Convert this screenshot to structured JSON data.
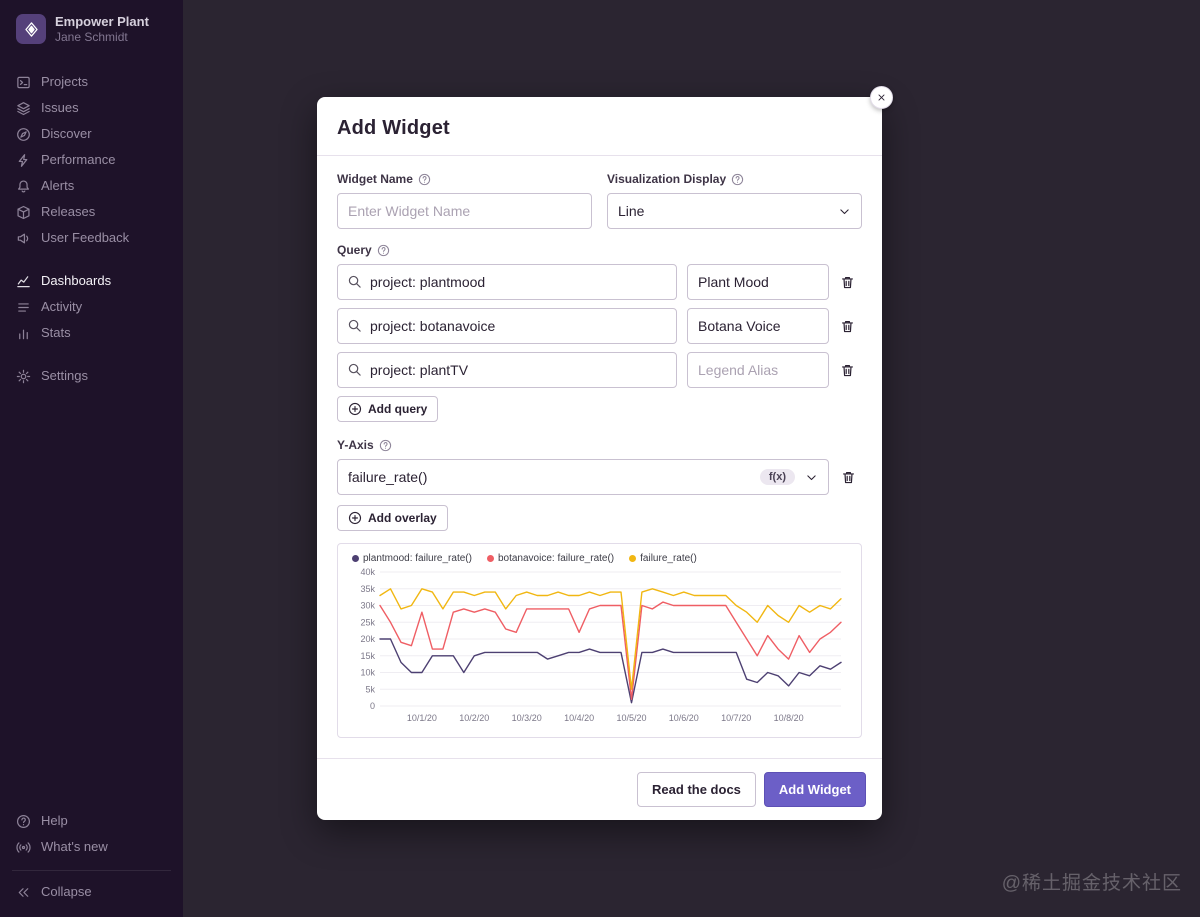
{
  "sidebar": {
    "org_name": "Empower Plant",
    "user_name": "Jane Schmidt",
    "primary_items": [
      {
        "label": "Projects",
        "icon": "projects",
        "name": "projects"
      },
      {
        "label": "Issues",
        "icon": "issues",
        "name": "issues"
      },
      {
        "label": "Discover",
        "icon": "discover",
        "name": "discover"
      },
      {
        "label": "Performance",
        "icon": "performance",
        "name": "performance"
      },
      {
        "label": "Alerts",
        "icon": "alerts",
        "name": "alerts"
      },
      {
        "label": "Releases",
        "icon": "releases",
        "name": "releases"
      },
      {
        "label": "User Feedback",
        "icon": "user-feedback",
        "name": "user-feedback"
      }
    ],
    "secondary_items": [
      {
        "label": "Dashboards",
        "icon": "dashboards",
        "name": "dashboards",
        "active": true
      },
      {
        "label": "Activity",
        "icon": "activity",
        "name": "activity"
      },
      {
        "label": "Stats",
        "icon": "stats",
        "name": "stats"
      }
    ],
    "settings_items": [
      {
        "label": "Settings",
        "icon": "settings",
        "name": "settings"
      }
    ],
    "footer_items": [
      {
        "label": "Help",
        "icon": "help",
        "name": "help"
      },
      {
        "label": "What's new",
        "icon": "whats-new",
        "name": "whats-new"
      }
    ],
    "collapse_items": [
      {
        "label": "Collapse",
        "icon": "collapse",
        "name": "collapse"
      }
    ]
  },
  "modal": {
    "title": "Add Widget",
    "widget_name": {
      "label": "Widget Name",
      "placeholder": "Enter Widget Name"
    },
    "visualization": {
      "label": "Visualization Display",
      "value": "Line"
    },
    "query": {
      "label": "Query",
      "rows": [
        {
          "query": "project: plantmood",
          "alias": "Plant Mood",
          "alias_placeholder": "Legend Alias"
        },
        {
          "query": "project: botanavoice",
          "alias": "Botana Voice",
          "alias_placeholder": "Legend Alias"
        },
        {
          "query": "project: plantTV",
          "alias": "",
          "alias_placeholder": "Legend Alias"
        }
      ],
      "add_button": "Add query"
    },
    "y_axis": {
      "label": "Y-Axis",
      "value": "failure_rate()",
      "badge": "f(x)",
      "add_button": "Add overlay"
    },
    "footer": {
      "docs_button": "Read the docs",
      "submit_button": "Add Widget"
    }
  },
  "chart_data": {
    "type": "line",
    "y_max": 40,
    "y_step": 5,
    "y_unit": "k",
    "x_labels": [
      "10/1/20",
      "10/2/20",
      "10/3/20",
      "10/4/20",
      "10/5/20",
      "10/6/20",
      "10/7/20",
      "10/8/20"
    ],
    "x_label_indices": [
      4,
      9,
      14,
      19,
      24,
      29,
      34,
      39
    ],
    "legend_position": "top",
    "grid": true,
    "series": [
      {
        "name": "plantmood: failure_rate()",
        "color": "#4d4072",
        "values": [
          20,
          20,
          13,
          10,
          10,
          15,
          15,
          15,
          10,
          15,
          16,
          16,
          16,
          16,
          16,
          16,
          14,
          15,
          16,
          16,
          17,
          16,
          16,
          16,
          1,
          16,
          16,
          17,
          16,
          16,
          16,
          16,
          16,
          16,
          16,
          8,
          7,
          10,
          9,
          6,
          10,
          9,
          12,
          11,
          13
        ]
      },
      {
        "name": "botanavoice: failure_rate()",
        "color": "#ef5e64",
        "values": [
          30,
          25,
          19,
          18,
          28,
          17,
          17,
          28,
          29,
          28,
          29,
          28,
          23,
          22,
          29,
          29,
          29,
          29,
          29,
          22,
          29,
          30,
          30,
          30,
          2,
          30,
          29,
          31,
          30,
          30,
          30,
          30,
          30,
          30,
          25,
          20,
          15,
          21,
          17,
          14,
          21,
          16,
          20,
          22,
          25
        ]
      },
      {
        "name": "failure_rate()",
        "color": "#f1b712",
        "values": [
          33,
          35,
          29,
          30,
          35,
          34,
          29,
          34,
          34,
          33,
          34,
          34,
          29,
          33,
          34,
          33,
          33,
          34,
          33,
          33,
          34,
          33,
          34,
          34,
          5,
          34,
          35,
          34,
          33,
          34,
          33,
          33,
          33,
          33,
          30,
          28,
          25,
          30,
          27,
          25,
          30,
          28,
          30,
          29,
          32
        ]
      }
    ]
  },
  "watermark": "@稀土掘金技术社区",
  "colors": {
    "accent": "#6c5fc7",
    "sidebar_bg": "#1e1229",
    "backdrop": "#2b2531",
    "line_purple": "#4d4072",
    "line_red": "#ef5e64",
    "line_yellow": "#f1b712"
  }
}
